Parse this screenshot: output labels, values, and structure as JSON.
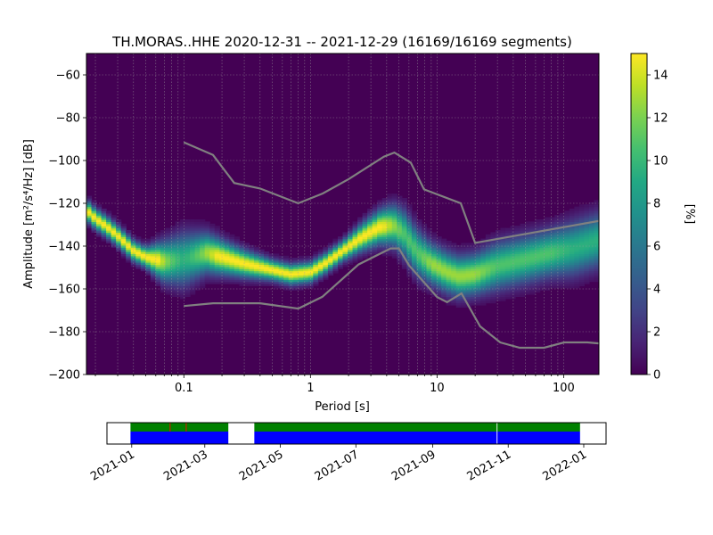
{
  "chart_data": [
    {
      "type": "heatmap",
      "title": "TH.MORAS..HHE   2020-12-31 -- 2021-12-29  (16169/16169 segments)",
      "xlabel": "Period [s]",
      "ylabel": "Amplitude [m²/s⁴/Hz] [dB]",
      "x_scale": "log",
      "xlim": [
        0.017,
        190
      ],
      "ylim": [
        -200,
        -50
      ],
      "x_ticks": [
        0.1,
        1,
        10,
        100
      ],
      "x_tick_labels": [
        "0.1",
        "1",
        "10",
        "100"
      ],
      "y_ticks": [
        -60,
        -80,
        -100,
        -120,
        -140,
        -160,
        -180,
        -200
      ],
      "y_tick_labels": [
        "−60",
        "−80",
        "−100",
        "−120",
        "−140",
        "−160",
        "−180",
        "−200"
      ],
      "grid": true,
      "colormap": "viridis",
      "colorbar": {
        "label": "[%]",
        "range": [
          0,
          15
        ],
        "ticks": [
          0,
          2,
          4,
          6,
          8,
          10,
          12,
          14
        ],
        "tick_labels": [
          "0",
          "2",
          "4",
          "6",
          "8",
          "10",
          "12",
          "14"
        ]
      },
      "mode_curve": {
        "period": [
          0.017,
          0.02,
          0.025,
          0.03,
          0.04,
          0.05,
          0.07,
          0.1,
          0.15,
          0.2,
          0.3,
          0.5,
          0.7,
          1.0,
          1.3,
          1.8,
          2.5,
          3.5,
          4.5,
          5.5,
          7,
          9,
          12,
          15,
          20,
          30,
          50,
          80,
          120,
          190
        ],
        "amplitude_db": [
          -123,
          -127,
          -131,
          -135,
          -142,
          -145,
          -147,
          -146,
          -143,
          -145,
          -148,
          -151,
          -153,
          -152,
          -148,
          -142,
          -136,
          -131,
          -130,
          -134,
          -143,
          -148,
          -152,
          -154,
          -153,
          -149,
          -146,
          -143,
          -141,
          -137
        ],
        "band_width_db": [
          3,
          3,
          3,
          3,
          3,
          3,
          6,
          8,
          6,
          5,
          4,
          3,
          3,
          3,
          3,
          3,
          4,
          5,
          6,
          7,
          7,
          6,
          6,
          6,
          6,
          7,
          7,
          7,
          8,
          8
        ]
      },
      "noise_model_upper": {
        "period": [
          0.1,
          0.17,
          0.25,
          0.4,
          0.8,
          1.25,
          2.0,
          3.8,
          4.6,
          6.2,
          7.9,
          15.4,
          20,
          200
        ],
        "amplitude_db": [
          -91.5,
          -97.4,
          -110.5,
          -113.1,
          -120,
          -115.4,
          -108.7,
          -98.2,
          -96.3,
          -101,
          -113.5,
          -120,
          -138.5,
          -128
        ]
      },
      "noise_model_lower": {
        "period": [
          0.1,
          0.17,
          0.4,
          0.8,
          1.24,
          2.4,
          4.3,
          5.0,
          6.0,
          10,
          12,
          15.6,
          21.9,
          31.6,
          45,
          70,
          101,
          154,
          200
        ],
        "amplitude_db": [
          -168,
          -166.7,
          -166.7,
          -169.2,
          -163.7,
          -148.6,
          -141.1,
          -141.1,
          -149,
          -163.8,
          -166.2,
          -162.1,
          -177.5,
          -185,
          -187.5,
          -187.5,
          -185,
          -185,
          -185.6
        ]
      }
    },
    {
      "type": "timeline",
      "x_tick_labels": [
        "2021-01",
        "2021-03",
        "2021-05",
        "2021-07",
        "2021-09",
        "2021-11",
        "2022-01"
      ],
      "x_ticks": [
        "2021-01-01",
        "2021-03-01",
        "2021-05-01",
        "2021-07-01",
        "2021-09-01",
        "2021-11-01",
        "2022-01-01"
      ],
      "xlim": [
        "2020-12-12",
        "2022-01-19"
      ],
      "data_coverage": [
        [
          "2020-12-31",
          "2021-03-20"
        ],
        [
          "2021-04-10",
          "2021-12-29"
        ]
      ],
      "gaps_marked": [
        "2021-02-01",
        "2021-02-14",
        "2021-10-23"
      ],
      "colors": {
        "data": "#0000ff",
        "used": "#008000",
        "gap": "#ff0000"
      }
    }
  ]
}
